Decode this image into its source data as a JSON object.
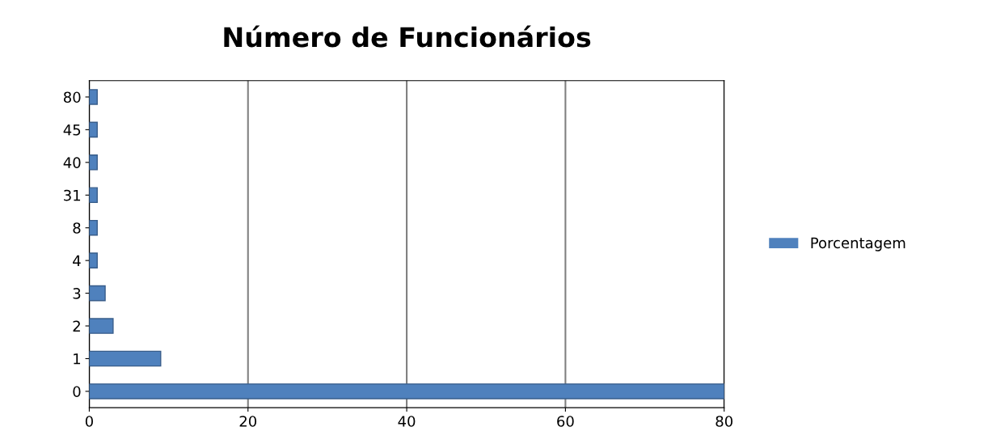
{
  "chart_data": {
    "type": "bar",
    "orientation": "horizontal",
    "title": "Número de Funcionários",
    "categories": [
      "80",
      "45",
      "40",
      "31",
      "8",
      "4",
      "3",
      "2",
      "1",
      "0"
    ],
    "series": [
      {
        "name": "Porcentagem",
        "color": "#4f81bd",
        "values": [
          1,
          1,
          1,
          1,
          1,
          1,
          2,
          3,
          9,
          80
        ]
      }
    ],
    "xlim": [
      0,
      80
    ],
    "xticks": [
      0,
      20,
      40,
      60,
      80
    ],
    "grid": "x",
    "legend": "right"
  }
}
